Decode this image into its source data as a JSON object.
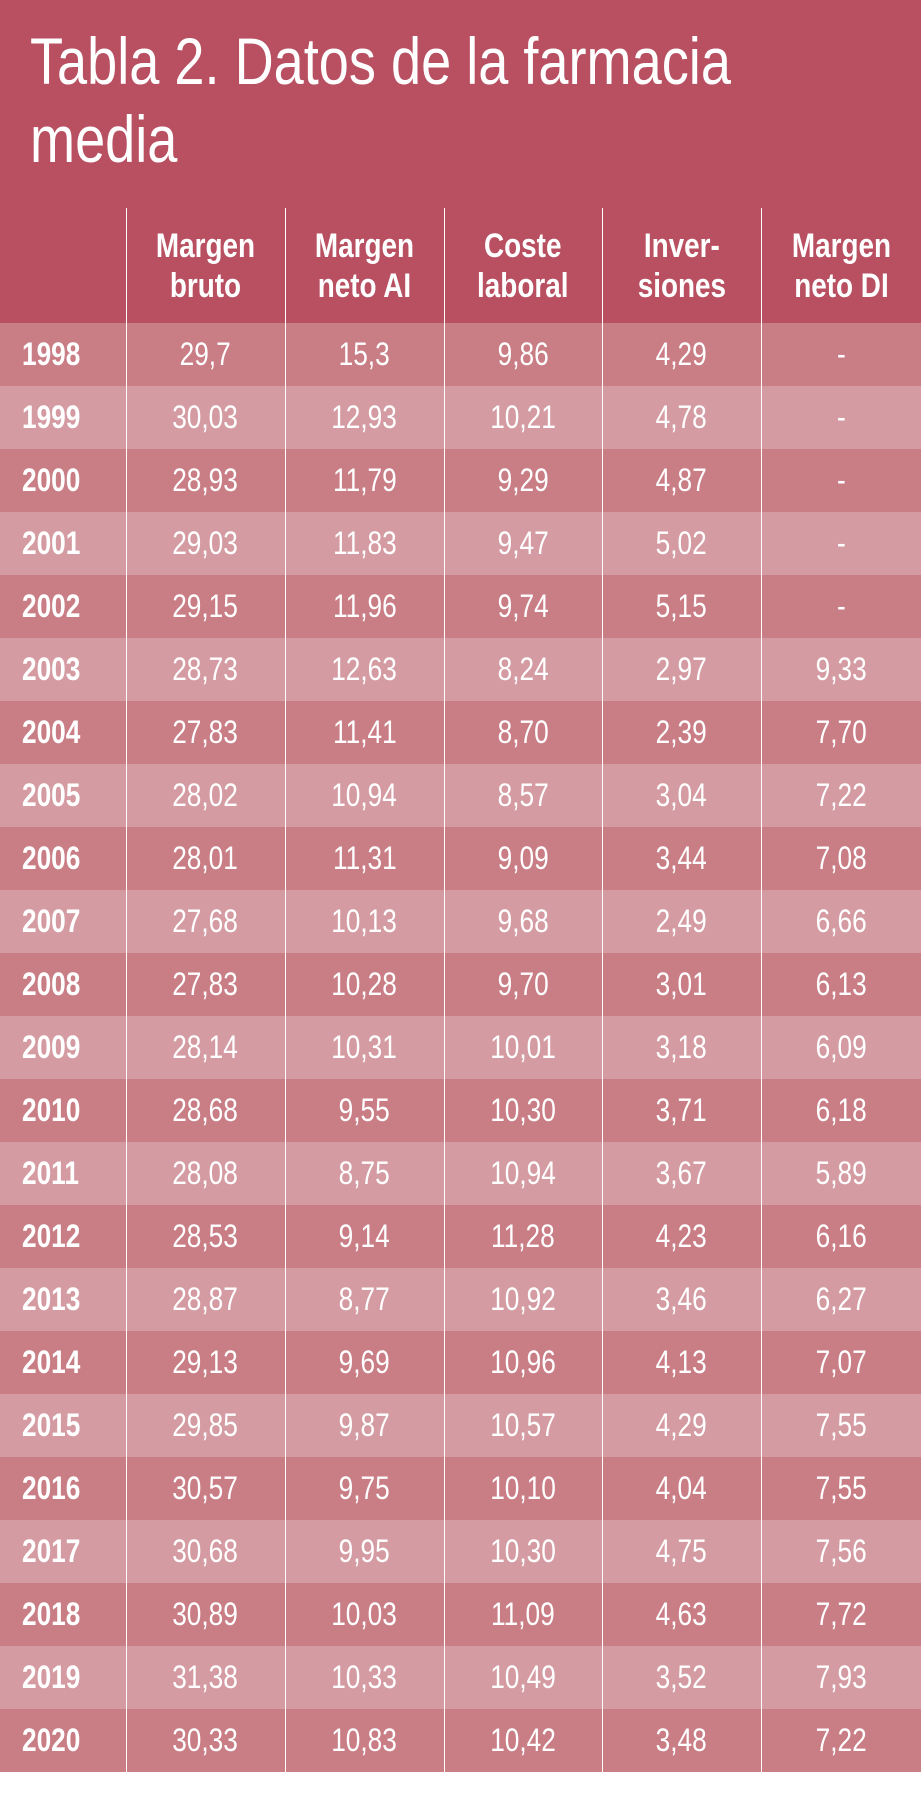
{
  "title": "Tabla 2. Datos de la farmacia media",
  "colors": {
    "header_bg": "#b85062",
    "row_dark": "#c97d85",
    "row_light": "#d49ca2",
    "text": "#ffffff"
  },
  "header": {
    "year": "",
    "columns": [
      {
        "line1": "Margen",
        "line2": "bruto"
      },
      {
        "line1": "Margen",
        "line2": "neto AI"
      },
      {
        "line1": "Coste",
        "line2": "laboral"
      },
      {
        "line1": "Inver-",
        "line2": "siones"
      },
      {
        "line1": "Margen",
        "line2": "neto DI"
      }
    ]
  },
  "rows": [
    {
      "year": "1998",
      "values": [
        "29,7",
        "15,3",
        "9,86",
        "4,29",
        "-"
      ]
    },
    {
      "year": "1999",
      "values": [
        "30,03",
        "12,93",
        "10,21",
        "4,78",
        "-"
      ]
    },
    {
      "year": "2000",
      "values": [
        "28,93",
        "11,79",
        "9,29",
        "4,87",
        "-"
      ]
    },
    {
      "year": "2001",
      "values": [
        "29,03",
        "11,83",
        "9,47",
        "5,02",
        "-"
      ]
    },
    {
      "year": "2002",
      "values": [
        "29,15",
        "11,96",
        "9,74",
        "5,15",
        "-"
      ]
    },
    {
      "year": "2003",
      "values": [
        "28,73",
        "12,63",
        "8,24",
        "2,97",
        "9,33"
      ]
    },
    {
      "year": "2004",
      "values": [
        "27,83",
        "11,41",
        "8,70",
        "2,39",
        "7,70"
      ]
    },
    {
      "year": "2005",
      "values": [
        "28,02",
        "10,94",
        "8,57",
        "3,04",
        "7,22"
      ]
    },
    {
      "year": "2006",
      "values": [
        "28,01",
        "11,31",
        "9,09",
        "3,44",
        "7,08"
      ]
    },
    {
      "year": "2007",
      "values": [
        "27,68",
        "10,13",
        "9,68",
        "2,49",
        "6,66"
      ]
    },
    {
      "year": "2008",
      "values": [
        "27,83",
        "10,28",
        "9,70",
        "3,01",
        "6,13"
      ]
    },
    {
      "year": "2009",
      "values": [
        "28,14",
        "10,31",
        "10,01",
        "3,18",
        "6,09"
      ]
    },
    {
      "year": "2010",
      "values": [
        "28,68",
        "9,55",
        "10,30",
        "3,71",
        "6,18"
      ]
    },
    {
      "year": "2011",
      "values": [
        "28,08",
        "8,75",
        "10,94",
        "3,67",
        "5,89"
      ]
    },
    {
      "year": "2012",
      "values": [
        "28,53",
        "9,14",
        "11,28",
        "4,23",
        "6,16"
      ]
    },
    {
      "year": "2013",
      "values": [
        "28,87",
        "8,77",
        "10,92",
        "3,46",
        "6,27"
      ]
    },
    {
      "year": "2014",
      "values": [
        "29,13",
        "9,69",
        "10,96",
        "4,13",
        "7,07"
      ]
    },
    {
      "year": "2015",
      "values": [
        "29,85",
        "9,87",
        "10,57",
        "4,29",
        "7,55"
      ]
    },
    {
      "year": "2016",
      "values": [
        "30,57",
        "9,75",
        "10,10",
        "4,04",
        "7,55"
      ]
    },
    {
      "year": "2017",
      "values": [
        "30,68",
        "9,95",
        "10,30",
        "4,75",
        "7,56"
      ]
    },
    {
      "year": "2018",
      "values": [
        "30,89",
        "10,03",
        "11,09",
        "4,63",
        "7,72"
      ]
    },
    {
      "year": "2019",
      "values": [
        "31,38",
        "10,33",
        "10,49",
        "3,52",
        "7,93"
      ]
    },
    {
      "year": "2020",
      "values": [
        "30,33",
        "10,83",
        "10,42",
        "3,48",
        "7,22"
      ]
    }
  ]
}
